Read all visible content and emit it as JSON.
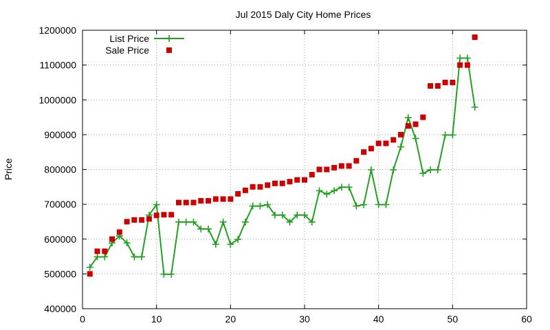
{
  "chart_data": {
    "type": "line",
    "title": "Jul 2015 Daly City Home Prices",
    "xlabel": "",
    "ylabel": "Price",
    "xlim": [
      0,
      60
    ],
    "ylim": [
      400000,
      1200000
    ],
    "xticks": [
      0,
      10,
      20,
      30,
      40,
      50,
      60
    ],
    "yticks": [
      400000,
      500000,
      600000,
      700000,
      800000,
      900000,
      1000000,
      1100000,
      1200000
    ],
    "grid": true,
    "legend_position": "top-left",
    "series": [
      {
        "name": "List Price",
        "style": "line-with-plus-markers",
        "color": "#1fa01f",
        "x": [
          1,
          2,
          3,
          4,
          5,
          6,
          7,
          8,
          9,
          10,
          11,
          12,
          13,
          14,
          15,
          16,
          17,
          18,
          19,
          20,
          21,
          22,
          23,
          24,
          25,
          26,
          27,
          28,
          29,
          30,
          31,
          32,
          33,
          34,
          35,
          36,
          37,
          38,
          39,
          40,
          41,
          42,
          43,
          44,
          45,
          46,
          47,
          48,
          49,
          50,
          51,
          52,
          53
        ],
        "y": [
          519000,
          549000,
          549000,
          589000,
          609000,
          589000,
          549000,
          549000,
          669000,
          699000,
          499000,
          499000,
          649000,
          649000,
          649000,
          629000,
          629000,
          585000,
          649000,
          585000,
          599000,
          649000,
          695000,
          695000,
          699000,
          669000,
          669000,
          649000,
          669000,
          669000,
          649000,
          739000,
          729000,
          739000,
          749000,
          749000,
          695000,
          699000,
          799000,
          699000,
          699000,
          799000,
          865000,
          949000,
          889000,
          789000,
          799000,
          799000,
          899000,
          899000,
          1120000,
          1120000,
          979000
        ]
      },
      {
        "name": "Sale Price",
        "style": "square-markers",
        "color": "#cc0000",
        "x": [
          1,
          2,
          3,
          4,
          5,
          6,
          7,
          8,
          9,
          10,
          11,
          12,
          13,
          14,
          15,
          16,
          17,
          18,
          19,
          20,
          21,
          22,
          23,
          24,
          25,
          26,
          27,
          28,
          29,
          30,
          31,
          32,
          33,
          34,
          35,
          36,
          37,
          38,
          39,
          40,
          41,
          42,
          43,
          44,
          45,
          46,
          47,
          48,
          49,
          50,
          51,
          52,
          53
        ],
        "y": [
          500000,
          565000,
          565000,
          600000,
          620000,
          650000,
          655000,
          655000,
          658000,
          668000,
          670000,
          670000,
          705000,
          705000,
          705000,
          710000,
          710000,
          715000,
          715000,
          715000,
          730000,
          740000,
          750000,
          750000,
          755000,
          760000,
          760000,
          765000,
          770000,
          770000,
          785000,
          800000,
          800000,
          805000,
          810000,
          810000,
          825000,
          850000,
          860000,
          875000,
          875000,
          885000,
          900000,
          925000,
          930000,
          950000,
          1040000,
          1040000,
          1050000,
          1050000,
          1100000,
          1100000,
          1180000
        ]
      }
    ]
  }
}
